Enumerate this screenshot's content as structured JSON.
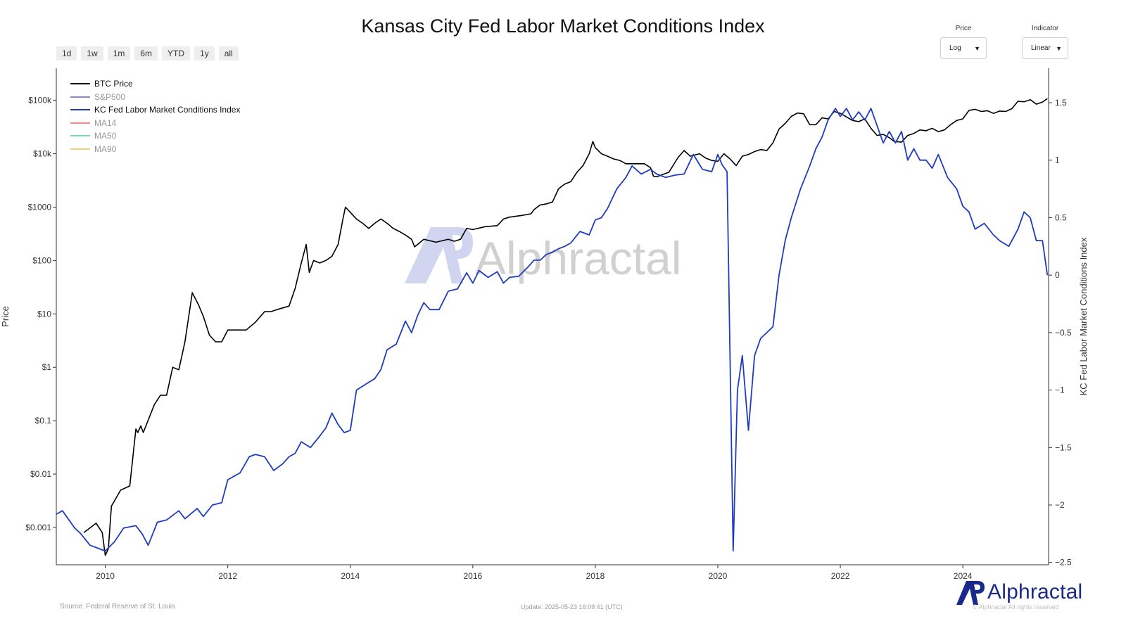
{
  "title": "Kansas City Fed Labor Market Conditions Index",
  "range_buttons": [
    "1d",
    "1w",
    "1m",
    "6m",
    "YTD",
    "1y",
    "all"
  ],
  "controls": {
    "price": {
      "label": "Price",
      "value": "Log"
    },
    "indicator": {
      "label": "Indicator",
      "value": "Linear"
    }
  },
  "footer": {
    "source": "Source: Federal Reserve of St. Louis",
    "update": "Update: 2025-05-23 16:09:41 (UTC)",
    "rights": "© Alphractal All rights reserved",
    "brand": "Alphractal"
  },
  "watermark": "Alphractal",
  "colors": {
    "btc": "#000000",
    "sp500": "#8888cc",
    "kc": "#1f3bbf",
    "ma14": "#f28c8c",
    "ma50": "#7fd3c0",
    "ma90": "#f5cf7a",
    "brand": "#1a2a8a"
  },
  "chart_data": {
    "type": "line",
    "title": "Kansas City Fed Labor Market Conditions Index",
    "xlabel": "",
    "ylabel": "Price",
    "y2label": "KC Fed Labor Market Conditions Index",
    "x_ticks": [
      "2010",
      "2012",
      "2014",
      "2016",
      "2018",
      "2020",
      "2022",
      "2024"
    ],
    "xlim": [
      2009.2,
      2025.4
    ],
    "y_scale": "log",
    "ylim": [
      0.0002,
      400000
    ],
    "y_ticks": [
      {
        "value": 0.001,
        "label": "$0.001"
      },
      {
        "value": 0.01,
        "label": "$0.01"
      },
      {
        "value": 0.1,
        "label": "$0.1"
      },
      {
        "value": 1,
        "label": "$1"
      },
      {
        "value": 10,
        "label": "$10"
      },
      {
        "value": 100,
        "label": "$100"
      },
      {
        "value": 1000,
        "label": "$1000"
      },
      {
        "value": 10000,
        "label": "$10k"
      },
      {
        "value": 100000,
        "label": "$100k"
      }
    ],
    "y2lim": [
      -2.52,
      1.8
    ],
    "y2_ticks": [
      {
        "value": 1.5,
        "label": "1.5"
      },
      {
        "value": 1,
        "label": "1"
      },
      {
        "value": 0.5,
        "label": "0.5"
      },
      {
        "value": 0,
        "label": "0"
      },
      {
        "value": -0.5,
        "label": "−0.5"
      },
      {
        "value": -1,
        "label": "−1"
      },
      {
        "value": -1.5,
        "label": "−1.5"
      },
      {
        "value": -2,
        "label": "−2"
      },
      {
        "value": -2.5,
        "label": "−2.5"
      }
    ],
    "grid": false,
    "legend_position": "top-left",
    "legend": [
      "BTC Price",
      "S&P500",
      "KC Fed Labor Market Conditions Index",
      "MA14",
      "MA50",
      "MA90"
    ],
    "series": [
      {
        "name": "BTC Price",
        "axis": "left",
        "color": "#000000",
        "x": [
          2009.65,
          2009.85,
          2009.95,
          2010.0,
          2010.05,
          2010.1,
          2010.25,
          2010.4,
          2010.5,
          2010.53,
          2010.58,
          2010.62,
          2010.8,
          2010.9,
          2011.0,
          2011.1,
          2011.2,
          2011.3,
          2011.42,
          2011.52,
          2011.6,
          2011.7,
          2011.8,
          2011.9,
          2012.0,
          2012.1,
          2012.2,
          2012.3,
          2012.45,
          2012.6,
          2012.7,
          2012.8,
          2012.9,
          2013.0,
          2013.1,
          2013.2,
          2013.28,
          2013.33,
          2013.4,
          2013.5,
          2013.6,
          2013.7,
          2013.8,
          2013.88,
          2013.92,
          2014.0,
          2014.1,
          2014.2,
          2014.3,
          2014.4,
          2014.5,
          2014.6,
          2014.7,
          2014.8,
          2014.9,
          2015.0,
          2015.05,
          2015.2,
          2015.4,
          2015.6,
          2015.7,
          2015.8,
          2015.9,
          2016.0,
          2016.2,
          2016.4,
          2016.5,
          2016.6,
          2016.8,
          2016.95,
          2017.0,
          2017.1,
          2017.2,
          2017.3,
          2017.4,
          2017.5,
          2017.6,
          2017.7,
          2017.8,
          2017.9,
          2017.96,
          2018.0,
          2018.1,
          2018.2,
          2018.3,
          2018.4,
          2018.5,
          2018.6,
          2018.7,
          2018.8,
          2018.9,
          2018.95,
          2019.0,
          2019.2,
          2019.35,
          2019.45,
          2019.55,
          2019.7,
          2019.8,
          2019.9,
          2020.0,
          2020.1,
          2020.2,
          2020.3,
          2020.4,
          2020.5,
          2020.6,
          2020.7,
          2020.8,
          2020.9,
          2021.0,
          2021.1,
          2021.2,
          2021.3,
          2021.4,
          2021.5,
          2021.6,
          2021.7,
          2021.8,
          2021.9,
          2022.0,
          2022.1,
          2022.2,
          2022.3,
          2022.4,
          2022.5,
          2022.6,
          2022.7,
          2022.8,
          2022.88,
          2023.0,
          2023.1,
          2023.2,
          2023.3,
          2023.4,
          2023.5,
          2023.6,
          2023.7,
          2023.8,
          2023.9,
          2024.0,
          2024.1,
          2024.2,
          2024.3,
          2024.4,
          2024.5,
          2024.6,
          2024.7,
          2024.8,
          2024.9,
          2025.0,
          2025.1,
          2025.2,
          2025.3,
          2025.38
        ],
        "values": [
          0.0008,
          0.0012,
          0.0008,
          0.0003,
          0.0004,
          0.0025,
          0.005,
          0.006,
          0.07,
          0.06,
          0.08,
          0.06,
          0.2,
          0.3,
          0.3,
          1,
          0.9,
          3,
          25,
          15,
          9,
          4,
          3,
          3,
          5,
          5,
          5,
          5,
          7,
          11,
          11,
          12,
          13,
          14,
          30,
          90,
          200,
          60,
          100,
          90,
          100,
          120,
          200,
          600,
          1000,
          800,
          600,
          500,
          400,
          500,
          600,
          500,
          400,
          350,
          300,
          250,
          180,
          250,
          220,
          250,
          230,
          250,
          400,
          380,
          430,
          450,
          600,
          650,
          700,
          750,
          900,
          1100,
          1150,
          1250,
          2200,
          2700,
          3000,
          4500,
          6000,
          10000,
          17000,
          13000,
          10000,
          9000,
          8000,
          7500,
          6500,
          6500,
          6500,
          6500,
          5500,
          3800,
          3700,
          4500,
          8500,
          11500,
          9000,
          10000,
          8300,
          7500,
          7200,
          10000,
          8000,
          6000,
          9000,
          9700,
          11000,
          12000,
          11500,
          16000,
          29000,
          37000,
          50000,
          58000,
          56000,
          35000,
          35000,
          47000,
          45000,
          62000,
          57000,
          49000,
          42000,
          40000,
          45000,
          30000,
          22000,
          23000,
          20000,
          17000,
          16500,
          22000,
          24000,
          28000,
          27000,
          30000,
          26000,
          28000,
          35000,
          42000,
          45000,
          65000,
          68000,
          62000,
          64000,
          57000,
          63000,
          62000,
          70000,
          96000,
          94000,
          103000,
          85000,
          93000,
          108000
        ]
      },
      {
        "name": "KC Fed Labor Market Conditions Index",
        "axis": "right",
        "color": "#1f3bbf",
        "x": [
          2009.2,
          2009.3,
          2009.5,
          2009.6,
          2009.75,
          2009.9,
          2010.0,
          2010.15,
          2010.3,
          2010.5,
          2010.6,
          2010.7,
          2010.85,
          2011.0,
          2011.2,
          2011.3,
          2011.5,
          2011.6,
          2011.75,
          2011.9,
          2012.0,
          2012.2,
          2012.35,
          2012.45,
          2012.6,
          2012.75,
          2012.9,
          2013.0,
          2013.1,
          2013.2,
          2013.35,
          2013.5,
          2013.6,
          2013.7,
          2013.8,
          2013.9,
          2014.0,
          2014.1,
          2014.25,
          2014.4,
          2014.5,
          2014.6,
          2014.75,
          2014.9,
          2015.0,
          2015.1,
          2015.2,
          2015.3,
          2015.45,
          2015.6,
          2015.75,
          2015.9,
          2016.0,
          2016.1,
          2016.25,
          2016.4,
          2016.5,
          2016.6,
          2016.75,
          2016.9,
          2017.0,
          2017.1,
          2017.2,
          2017.3,
          2017.4,
          2017.5,
          2017.6,
          2017.75,
          2017.9,
          2018.0,
          2018.1,
          2018.2,
          2018.35,
          2018.5,
          2018.6,
          2018.75,
          2018.9,
          2019.0,
          2019.15,
          2019.3,
          2019.45,
          2019.6,
          2019.75,
          2019.9,
          2020.0,
          2020.07,
          2020.15,
          2020.25,
          2020.32,
          2020.4,
          2020.5,
          2020.6,
          2020.7,
          2020.8,
          2020.9,
          2021.0,
          2021.1,
          2021.2,
          2021.35,
          2021.5,
          2021.6,
          2021.7,
          2021.8,
          2021.92,
          2022.0,
          2022.1,
          2022.2,
          2022.3,
          2022.4,
          2022.5,
          2022.6,
          2022.7,
          2022.8,
          2022.9,
          2023.0,
          2023.1,
          2023.2,
          2023.3,
          2023.4,
          2023.5,
          2023.6,
          2023.75,
          2023.9,
          2024.0,
          2024.1,
          2024.2,
          2024.35,
          2024.5,
          2024.6,
          2024.75,
          2024.9,
          2025.0,
          2025.1,
          2025.2,
          2025.3,
          2025.38
        ],
        "values": [
          -2.08,
          -2.05,
          -2.2,
          -2.25,
          -2.35,
          -2.38,
          -2.4,
          -2.32,
          -2.2,
          -2.18,
          -2.25,
          -2.35,
          -2.15,
          -2.13,
          -2.05,
          -2.12,
          -2.03,
          -2.1,
          -2.0,
          -1.98,
          -1.78,
          -1.72,
          -1.58,
          -1.56,
          -1.58,
          -1.7,
          -1.64,
          -1.58,
          -1.55,
          -1.45,
          -1.5,
          -1.4,
          -1.33,
          -1.2,
          -1.3,
          -1.37,
          -1.35,
          -1.0,
          -0.95,
          -0.9,
          -0.82,
          -0.65,
          -0.6,
          -0.4,
          -0.5,
          -0.35,
          -0.24,
          -0.3,
          -0.3,
          -0.14,
          -0.12,
          0.02,
          -0.07,
          0.04,
          -0.02,
          0.03,
          -0.07,
          -0.02,
          -0.01,
          0.07,
          0.13,
          0.13,
          0.18,
          0.2,
          0.23,
          0.25,
          0.28,
          0.38,
          0.35,
          0.48,
          0.5,
          0.58,
          0.75,
          0.85,
          0.95,
          0.88,
          0.92,
          0.88,
          0.85,
          0.87,
          0.88,
          1.05,
          0.92,
          0.9,
          1.05,
          0.96,
          0.9,
          -2.4,
          -1.0,
          -0.7,
          -1.35,
          -0.7,
          -0.55,
          -0.5,
          -0.45,
          0.0,
          0.3,
          0.5,
          0.75,
          0.95,
          1.1,
          1.2,
          1.35,
          1.45,
          1.38,
          1.45,
          1.35,
          1.42,
          1.35,
          1.45,
          1.3,
          1.15,
          1.25,
          1.15,
          1.25,
          1.0,
          1.1,
          1.0,
          1.0,
          0.93,
          1.05,
          0.85,
          0.75,
          0.6,
          0.55,
          0.4,
          0.45,
          0.35,
          0.3,
          0.25,
          0.4,
          0.55,
          0.5,
          0.3,
          0.3,
          0.0
        ]
      }
    ]
  }
}
